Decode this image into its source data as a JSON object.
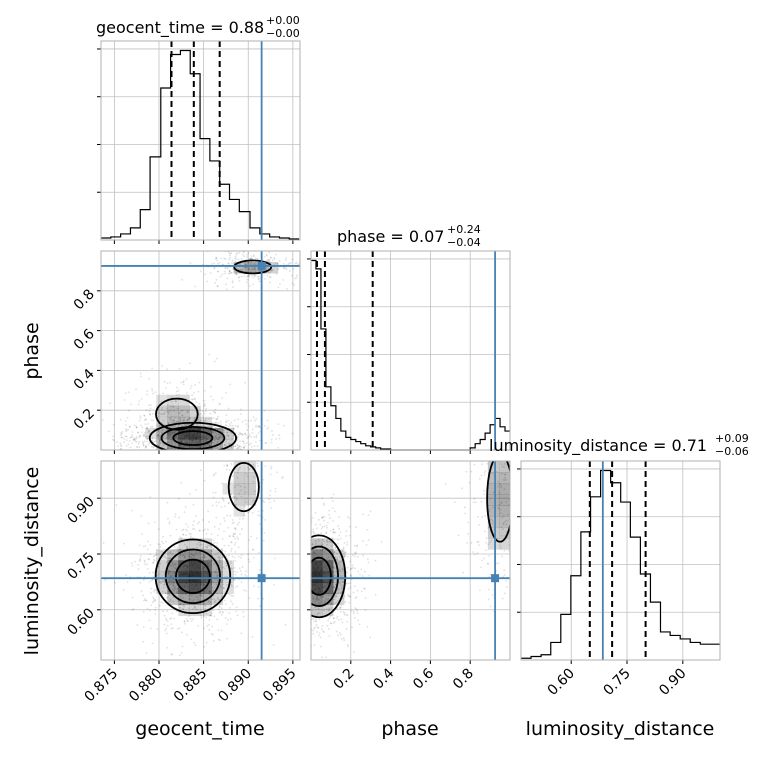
{
  "chart_data": {
    "type": "corner",
    "parameters": [
      "geocent_time",
      "phase",
      "luminosity_distance"
    ],
    "truths": {
      "geocent_time": 0.8915,
      "phase": 0.925,
      "luminosity_distance": 0.685
    },
    "colors": {
      "truth": "#4682b4",
      "hist": "#000000",
      "grid": "#c0c0c0",
      "frame": "#b0b0b0"
    },
    "grid": true,
    "titles": [
      {
        "param": "geocent_time",
        "main": "geocent_time = 0.88",
        "sup": "+0.00",
        "sub": "−0.00"
      },
      {
        "param": "phase",
        "main": "phase = 0.07",
        "sup": "+0.24",
        "sub": "−0.04"
      },
      {
        "param": "luminosity_distance",
        "main": "luminosity_distance = 0.71",
        "sup": "+0.09",
        "sub": "−0.06"
      }
    ],
    "axis_labels": {
      "geocent_time": "geocent_time",
      "phase": "phase",
      "luminosity_distance": "luminosity_distance"
    },
    "ranges": {
      "geocent_time": [
        0.8735,
        0.8958
      ],
      "phase": [
        0.0,
        1.0
      ],
      "luminosity_distance": [
        0.465,
        1.0
      ]
    },
    "x_ticks": {
      "geocent_time": [
        "0.875",
        "0.880",
        "0.885",
        "0.890",
        "0.895"
      ],
      "phase": [
        "0.2",
        "0.4",
        "0.6",
        "0.8"
      ],
      "luminosity_distance": [
        "0.60",
        "0.75",
        "0.90"
      ]
    },
    "y_ticks": {
      "phase": [
        "0.2",
        "0.4",
        "0.6",
        "0.8"
      ],
      "luminosity_distance": [
        "0.60",
        "0.75",
        "0.90"
      ]
    },
    "quantile_lines": {
      "geocent_time": [
        0.8814,
        0.8839,
        0.8868
      ],
      "phase": [
        0.03,
        0.07,
        0.31
      ],
      "luminosity_distance": [
        0.65,
        0.71,
        0.8
      ]
    },
    "histograms": {
      "geocent_time": {
        "edges": [
          0.8735,
          0.8746,
          0.8757,
          0.8768,
          0.8779,
          0.879,
          0.8802,
          0.8813,
          0.8824,
          0.8835,
          0.8846,
          0.8857,
          0.8868,
          0.8879,
          0.889,
          0.8902,
          0.8913,
          0.8924,
          0.8935,
          0.8946,
          0.8957
        ],
        "counts": [
          2,
          3,
          6,
          12,
          30,
          82,
          150,
          183,
          187,
          164,
          100,
          78,
          55,
          40,
          28,
          12,
          6,
          3,
          2,
          1
        ]
      },
      "phase": {
        "edges": [
          0.0,
          0.025,
          0.05,
          0.075,
          0.1,
          0.125,
          0.15,
          0.175,
          0.2,
          0.225,
          0.25,
          0.275,
          0.3,
          0.325,
          0.35,
          0.375,
          0.4,
          0.8,
          0.825,
          0.85,
          0.875,
          0.9,
          0.925,
          0.95,
          0.975,
          1.0
        ],
        "counts": [
          180,
          172,
          115,
          60,
          42,
          30,
          18,
          12,
          10,
          8,
          6,
          4,
          3,
          2,
          1,
          1,
          0,
          2,
          6,
          10,
          16,
          24,
          30,
          22,
          18
        ]
      },
      "luminosity_distance": {
        "edges": [
          0.465,
          0.492,
          0.519,
          0.545,
          0.572,
          0.599,
          0.626,
          0.652,
          0.679,
          0.706,
          0.733,
          0.759,
          0.786,
          0.813,
          0.84,
          0.866,
          0.893,
          0.92,
          0.947,
          0.973,
          1.0
        ],
        "counts": [
          1,
          2,
          3,
          10,
          26,
          48,
          73,
          93,
          108,
          101,
          90,
          70,
          49,
          33,
          16,
          14,
          12,
          10,
          9,
          9
        ]
      }
    },
    "densities": {
      "phase_vs_geocent_time": [
        {
          "x": 0.8838,
          "y": 0.06,
          "sx": 0.0022,
          "sy": 0.035,
          "w": 1.0
        },
        {
          "x": 0.882,
          "y": 0.18,
          "sx": 0.0018,
          "sy": 0.06,
          "w": 0.25
        },
        {
          "x": 0.8905,
          "y": 0.92,
          "sx": 0.0016,
          "sy": 0.025,
          "w": 0.35
        }
      ],
      "luminosity_distance_vs_geocent_time": [
        {
          "x": 0.8838,
          "y": 0.69,
          "sx": 0.0019,
          "sy": 0.045,
          "w": 1.0
        },
        {
          "x": 0.8895,
          "y": 0.93,
          "sx": 0.0013,
          "sy": 0.05,
          "w": 0.2
        }
      ],
      "luminosity_distance_vs_phase": [
        {
          "x": 0.04,
          "y": 0.69,
          "sx": 0.06,
          "sy": 0.05,
          "w": 1.0
        },
        {
          "x": 0.95,
          "y": 0.9,
          "sx": 0.05,
          "sy": 0.09,
          "w": 0.35
        }
      ]
    }
  }
}
